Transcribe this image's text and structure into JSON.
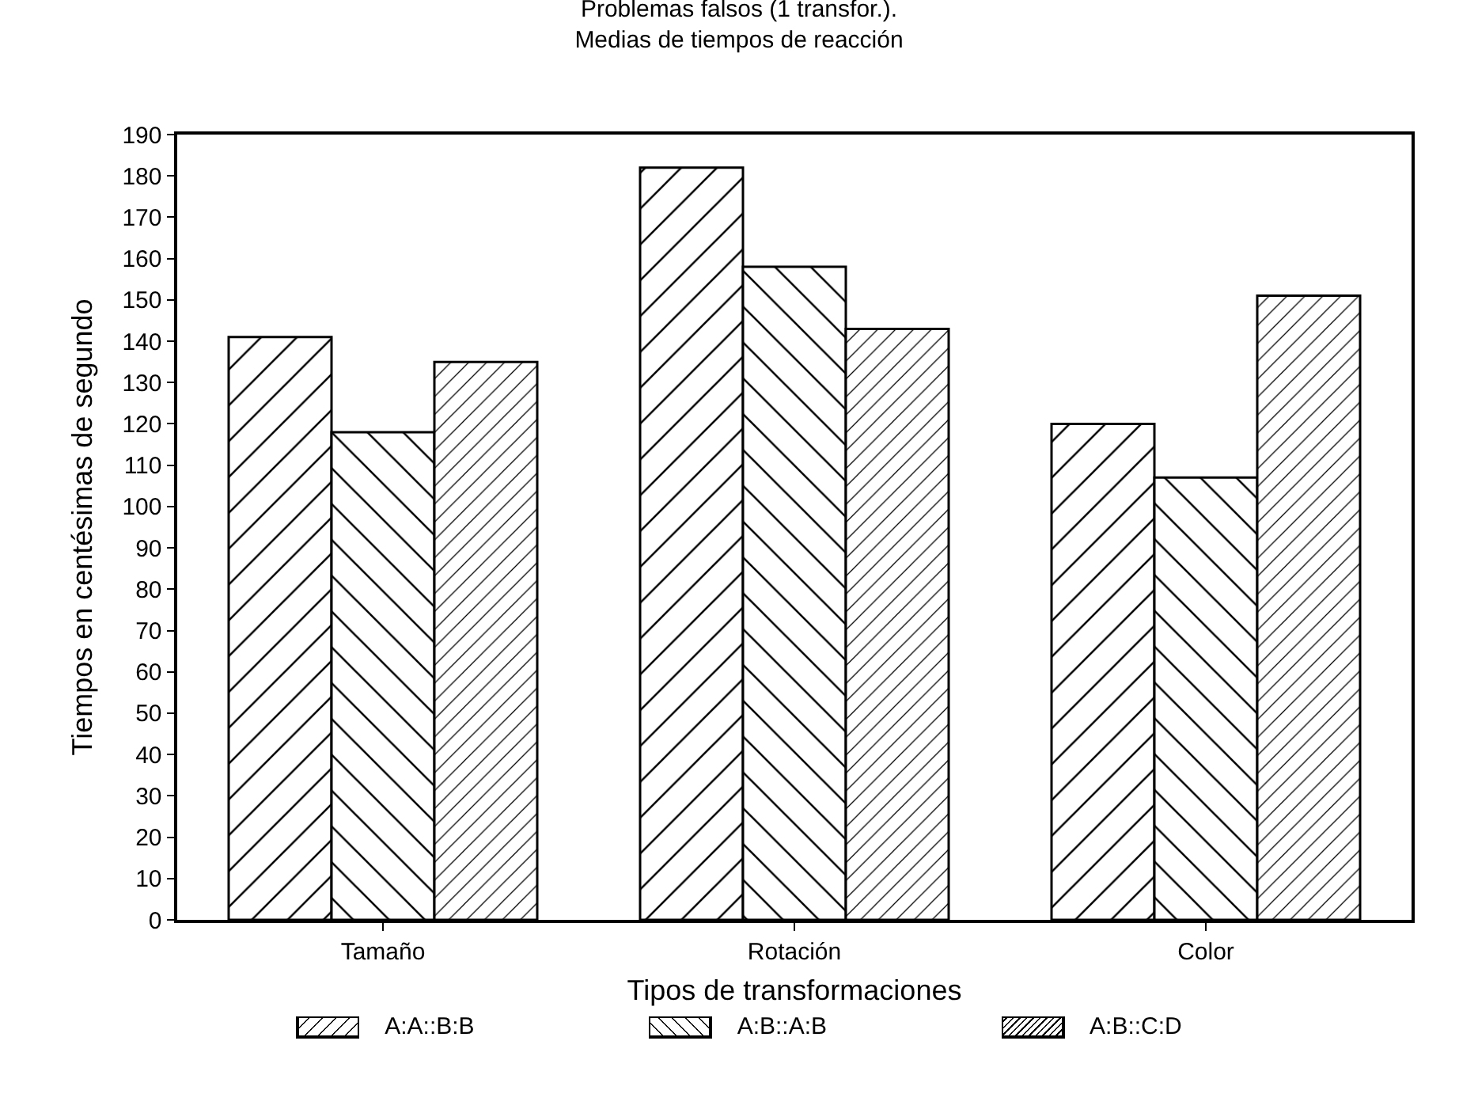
{
  "chart_data": {
    "type": "bar",
    "title": "Problemas falsos (1 transfor.).\nMedias de tiempos de reacción",
    "xlabel": "Tipos de transformaciones",
    "ylabel": "Tiempos en centésimas de segundo",
    "categories": [
      "Tamaño",
      "Rotación",
      "Color"
    ],
    "series": [
      {
        "name": "A:A::B:B",
        "color": "#000000",
        "values": [
          141,
          182,
          120
        ]
      },
      {
        "name": "A:B::A:B",
        "color": "#000000",
        "values": [
          118,
          158,
          107
        ]
      },
      {
        "name": "A:B::C:D",
        "color": "#000000",
        "values": [
          135,
          143,
          151
        ]
      }
    ],
    "ylim": [
      0,
      190
    ],
    "yticks": [
      0,
      10,
      20,
      30,
      40,
      50,
      60,
      70,
      80,
      90,
      100,
      110,
      120,
      130,
      140,
      150,
      160,
      170,
      180,
      190
    ],
    "grid": false,
    "legend": "bottom"
  }
}
